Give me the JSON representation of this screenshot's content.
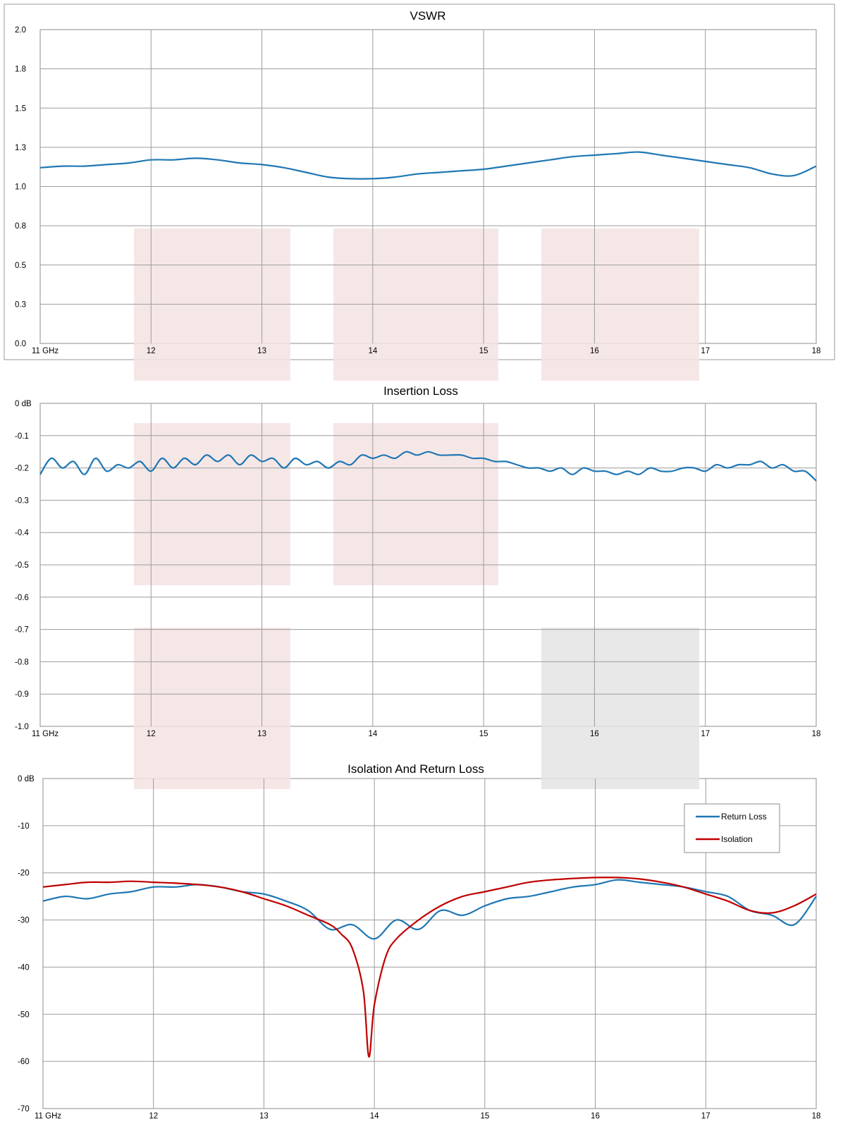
{
  "chart_data": [
    {
      "type": "line",
      "title": "VSWR",
      "xlim": [
        11,
        18
      ],
      "ylim": [
        0,
        2
      ],
      "x_ticks": [
        "11 GHz",
        "12",
        "13",
        "14",
        "15",
        "16",
        "17",
        "18"
      ],
      "y_ticks": [
        "2.0",
        "1.8",
        "1.5",
        "1.3",
        "1.0",
        "0.8",
        "0.5",
        "0.3",
        "0.0"
      ],
      "grid": true,
      "series": [
        {
          "color": "#1f77b4",
          "x": [
            11.0,
            11.2,
            11.4,
            11.6,
            11.8,
            12.0,
            12.2,
            12.4,
            12.6,
            12.8,
            13.0,
            13.2,
            13.4,
            13.6,
            13.8,
            14.0,
            14.2,
            14.4,
            14.6,
            14.8,
            15.0,
            15.2,
            15.4,
            15.6,
            15.8,
            16.0,
            16.2,
            16.4,
            16.6,
            16.8,
            17.0,
            17.2,
            17.4,
            17.6,
            17.8,
            18.0
          ],
          "y": [
            1.12,
            1.13,
            1.13,
            1.14,
            1.15,
            1.17,
            1.17,
            1.18,
            1.17,
            1.15,
            1.14,
            1.12,
            1.09,
            1.06,
            1.05,
            1.05,
            1.06,
            1.08,
            1.09,
            1.1,
            1.11,
            1.13,
            1.15,
            1.17,
            1.19,
            1.2,
            1.21,
            1.22,
            1.2,
            1.18,
            1.16,
            1.14,
            1.12,
            1.08,
            1.07,
            1.13
          ]
        }
      ]
    },
    {
      "type": "line",
      "title": "Insertion Loss",
      "xlim": [
        11,
        18
      ],
      "ylim": [
        -1.0,
        0
      ],
      "x_ticks": [
        "11 GHz",
        "12",
        "13",
        "14",
        "15",
        "16",
        "17",
        "18"
      ],
      "y_ticks": [
        "0 dB",
        "-0.1",
        "-0.2",
        "-0.3",
        "-0.4",
        "-0.5",
        "-0.6",
        "-0.7",
        "-0.8",
        "-0.9",
        "-1.0"
      ],
      "grid": true,
      "series": [
        {
          "color": "#1f77b4",
          "x": [
            11.0,
            11.1,
            11.2,
            11.3,
            11.4,
            11.5,
            11.6,
            11.7,
            11.8,
            11.9,
            12.0,
            12.1,
            12.2,
            12.3,
            12.4,
            12.5,
            12.6,
            12.7,
            12.8,
            12.9,
            13.0,
            13.1,
            13.2,
            13.3,
            13.4,
            13.5,
            13.6,
            13.7,
            13.8,
            13.9,
            14.0,
            14.1,
            14.2,
            14.3,
            14.4,
            14.5,
            14.6,
            14.7,
            14.8,
            14.9,
            15.0,
            15.1,
            15.2,
            15.3,
            15.4,
            15.5,
            15.6,
            15.7,
            15.8,
            15.9,
            16.0,
            16.1,
            16.2,
            16.3,
            16.4,
            16.5,
            16.6,
            16.7,
            16.8,
            16.9,
            17.0,
            17.1,
            17.2,
            17.3,
            17.4,
            17.5,
            17.6,
            17.7,
            17.8,
            17.9,
            18.0
          ],
          "y": [
            -0.22,
            -0.17,
            -0.2,
            -0.18,
            -0.22,
            -0.17,
            -0.21,
            -0.19,
            -0.2,
            -0.18,
            -0.21,
            -0.17,
            -0.2,
            -0.17,
            -0.19,
            -0.16,
            -0.18,
            -0.16,
            -0.19,
            -0.16,
            -0.18,
            -0.17,
            -0.2,
            -0.17,
            -0.19,
            -0.18,
            -0.2,
            -0.18,
            -0.19,
            -0.16,
            -0.17,
            -0.16,
            -0.17,
            -0.15,
            -0.16,
            -0.15,
            -0.16,
            -0.16,
            -0.16,
            -0.17,
            -0.17,
            -0.18,
            -0.18,
            -0.19,
            -0.2,
            -0.2,
            -0.21,
            -0.2,
            -0.22,
            -0.2,
            -0.21,
            -0.21,
            -0.22,
            -0.21,
            -0.22,
            -0.2,
            -0.21,
            -0.21,
            -0.2,
            -0.2,
            -0.21,
            -0.19,
            -0.2,
            -0.19,
            -0.19,
            -0.18,
            -0.2,
            -0.19,
            -0.21,
            -0.21,
            -0.24
          ]
        }
      ]
    },
    {
      "type": "line",
      "title": "Isolation And Return Loss",
      "xlim": [
        11,
        18
      ],
      "ylim": [
        -70,
        0
      ],
      "x_ticks": [
        "11 GHz",
        "12",
        "13",
        "14",
        "15",
        "16",
        "17",
        "18"
      ],
      "y_ticks": [
        "0 dB",
        "-10",
        "-20",
        "-30",
        "-40",
        "-50",
        "-60",
        "-70"
      ],
      "grid": true,
      "legend": "top-right",
      "series": [
        {
          "name": "Return Loss",
          "color": "#1f77b4",
          "x": [
            11.0,
            11.2,
            11.4,
            11.6,
            11.8,
            12.0,
            12.2,
            12.4,
            12.6,
            12.8,
            13.0,
            13.2,
            13.4,
            13.6,
            13.8,
            14.0,
            14.2,
            14.4,
            14.6,
            14.8,
            15.0,
            15.2,
            15.4,
            15.6,
            15.8,
            16.0,
            16.2,
            16.4,
            16.6,
            16.8,
            17.0,
            17.2,
            17.4,
            17.6,
            17.8,
            18.0
          ],
          "y": [
            -26,
            -25,
            -25.5,
            -24.5,
            -24,
            -23,
            -23,
            -22.5,
            -23,
            -24,
            -24.5,
            -26,
            -28,
            -32,
            -31,
            -34,
            -30,
            -32,
            -28,
            -29,
            -27,
            -25.5,
            -25,
            -24,
            -23,
            -22.5,
            -21.5,
            -22,
            -22.5,
            -23,
            -24,
            -25,
            -28,
            -29,
            -31,
            -25
          ]
        },
        {
          "name": "Isolation",
          "color": "#c00000",
          "x": [
            11.0,
            11.2,
            11.4,
            11.6,
            11.8,
            12.0,
            12.2,
            12.4,
            12.6,
            12.8,
            13.0,
            13.2,
            13.4,
            13.6,
            13.7,
            13.8,
            13.9,
            13.95,
            14.0,
            14.1,
            14.2,
            14.4,
            14.6,
            14.8,
            15.0,
            15.2,
            15.4,
            15.6,
            15.8,
            16.0,
            16.2,
            16.4,
            16.6,
            16.8,
            17.0,
            17.2,
            17.4,
            17.6,
            17.8,
            18.0
          ],
          "y": [
            -23,
            -22.5,
            -22,
            -22,
            -21.8,
            -22,
            -22.2,
            -22.5,
            -23,
            -24,
            -25.5,
            -27,
            -29,
            -31,
            -33,
            -36,
            -45,
            -59,
            -48,
            -38,
            -34,
            -30,
            -27,
            -25,
            -24,
            -23,
            -22,
            -21.5,
            -21.2,
            -21,
            -21,
            -21.3,
            -22,
            -23,
            -24.5,
            -26,
            -28,
            -28.5,
            -27,
            -24.5
          ]
        }
      ]
    }
  ],
  "bands": {
    "pink": "#f4e3e3",
    "grey": "#e4e4e4"
  }
}
